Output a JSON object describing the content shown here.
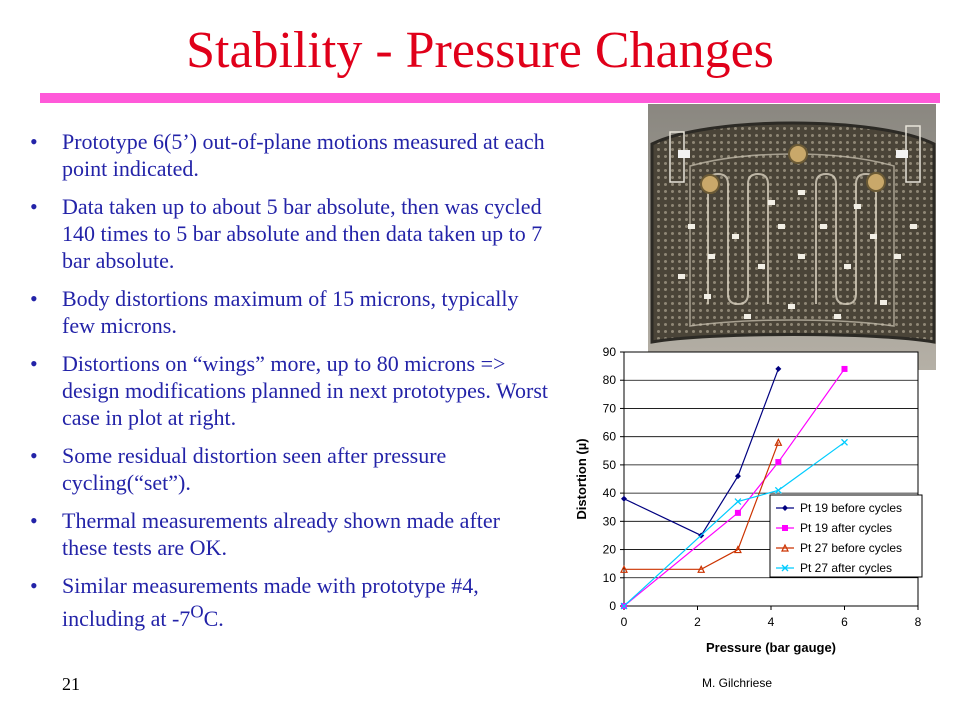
{
  "slide": {
    "title": "Stability - Pressure Changes",
    "page_number": "21",
    "author": "M. Gilchriese",
    "bullet_char": "•",
    "bullets": [
      {
        "text": "Prototype 6(5’) out-of-plane motions measured at each point indicated."
      },
      {
        "text": "Data taken up to about 5 bar absolute, then was cycled 140 times to 5 bar absolute and then data taken up to 7 bar absolute."
      },
      {
        "text": "Body distortions maximum of 15 microns, typically few microns."
      },
      {
        "text": "Distortions on “wings” more, up to 80 microns => design modifications planned in next prototypes. Worst case in plot at right."
      },
      {
        "text": "Some residual distortion seen after pressure cycling(“set”)."
      },
      {
        "text": "Thermal measurements already shown made after these tests are OK."
      },
      {
        "text_before": "Similar measurements made with prototype #4, including at -7",
        "superscript": "O",
        "text_after": "C."
      }
    ]
  },
  "chart_data": {
    "type": "line",
    "xlabel": "Pressure (bar gauge)",
    "ylabel": "Distortion (µ)",
    "xlim": [
      0,
      8
    ],
    "ylim": [
      0,
      90
    ],
    "x_ticks": [
      0,
      2,
      4,
      6,
      8
    ],
    "y_ticks": [
      0,
      10,
      20,
      30,
      40,
      50,
      60,
      70,
      80,
      90
    ],
    "grid": "horizontal",
    "legend_position": "bottom-right",
    "series": [
      {
        "name": "Pt 19 before cycles",
        "color": "#000080",
        "marker": "diamond",
        "x": [
          0,
          2.1,
          3.1,
          4.2
        ],
        "y": [
          38,
          25,
          46,
          84
        ]
      },
      {
        "name": "Pt 19 after cycles",
        "color": "#ff00ff",
        "marker": "square",
        "x": [
          0,
          3.1,
          4.2,
          6.0
        ],
        "y": [
          0,
          33,
          51,
          84
        ]
      },
      {
        "name": "Pt 27 before cycles",
        "color": "#cc3300",
        "marker": "triangle",
        "x": [
          0,
          2.1,
          3.1,
          4.2
        ],
        "y": [
          13,
          13,
          20,
          58
        ]
      },
      {
        "name": "Pt 27 after cycles",
        "color": "#00ccff",
        "marker": "x",
        "x": [
          0,
          3.1,
          4.2,
          6.0
        ],
        "y": [
          0,
          37,
          41,
          58
        ]
      }
    ]
  }
}
